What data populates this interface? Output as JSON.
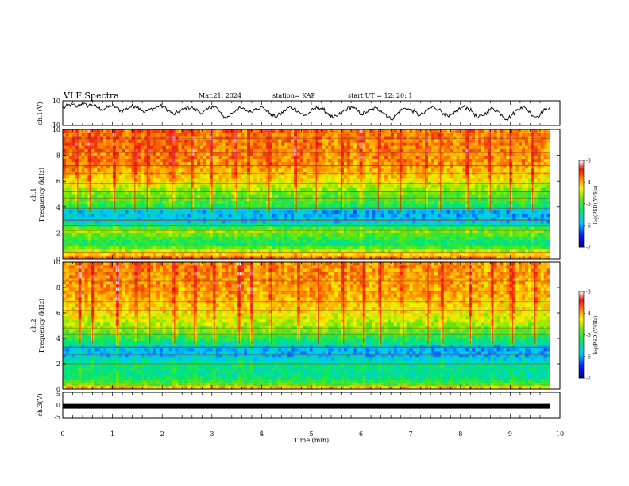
{
  "header": {
    "title": "VLF Spectra",
    "date": "Mar.21, 2024",
    "station": "station= KAP",
    "start": "start  UT  =   12: 20: 1"
  },
  "chart_data": [
    {
      "type": "line",
      "name": "ch.1 waveform",
      "ylabel": "ch.1(V)",
      "ylim": [
        -10,
        10
      ],
      "yticks": [
        "10",
        "-10"
      ],
      "xlim": [
        0,
        10
      ],
      "x_extent_min": 9.8,
      "approx_period_min": 0.6,
      "approx_amplitude_V": [
        -6,
        8
      ],
      "samples": [
        4,
        6,
        7,
        5,
        8,
        6,
        7,
        5,
        3,
        4,
        6,
        5,
        2,
        3,
        5,
        6,
        4,
        1,
        3,
        4,
        6,
        5,
        2,
        -1,
        1,
        3,
        5,
        4,
        2,
        0,
        3,
        6,
        4,
        -2,
        -4,
        0,
        3,
        4,
        2,
        1,
        4,
        5,
        3,
        0,
        -3,
        -1,
        2,
        5,
        4,
        1,
        -2,
        0,
        3,
        5,
        3,
        0,
        -4,
        -2,
        1,
        4,
        5,
        2,
        -1,
        1,
        3,
        4,
        2,
        -1,
        -5,
        -2,
        2,
        4,
        3,
        1,
        -2,
        0,
        4,
        5,
        3,
        0,
        -3,
        -1,
        3,
        5,
        4,
        1,
        -4,
        -2,
        1,
        4,
        2,
        -1,
        -5,
        -2,
        2,
        5,
        4,
        0,
        -3,
        -1,
        3,
        5
      ]
    },
    {
      "type": "heatmap",
      "name": "ch.1 spectrogram",
      "ylabel_line1": "ch.1",
      "ylabel_line2": "Frequency (kHz)",
      "ylim": [
        0,
        10
      ],
      "yticks": [
        "0",
        "2",
        "4",
        "6",
        "8",
        "10"
      ],
      "xlim": [
        0,
        10
      ],
      "x_extent_min": 9.8,
      "colorbar": {
        "label": "log(PSD)(V²/Hz)",
        "range": [
          -7,
          -3
        ],
        "ticks": [
          "-3",
          "-4",
          "-5",
          "-6",
          "-7"
        ]
      },
      "level_by_freq_kHz": [
        {
          "f": 0.0,
          "level": -3.6
        },
        {
          "f": 0.6,
          "level": -4.4
        },
        {
          "f": 1.2,
          "level": -5.3
        },
        {
          "f": 2.2,
          "level": -4.6
        },
        {
          "f": 2.8,
          "level": -5.7
        },
        {
          "f": 3.6,
          "level": -5.9
        },
        {
          "f": 4.2,
          "level": -5.0
        },
        {
          "f": 5.0,
          "level": -4.8
        },
        {
          "f": 6.0,
          "level": -4.2
        },
        {
          "f": 7.5,
          "level": -3.8
        },
        {
          "f": 10.0,
          "level": -3.7
        }
      ],
      "horizontal_lines_kHz": [
        0.5,
        2.2,
        2.6,
        3.0,
        3.9,
        4.7,
        5.2,
        5.8,
        6.6,
        7.2,
        8.2,
        9.3
      ],
      "bright_columns_min": [
        0.3,
        0.55,
        1.05,
        1.45,
        1.7,
        2.2,
        2.6,
        3.0,
        3.5,
        3.75,
        4.15,
        4.7,
        5.1,
        5.6,
        6.0,
        6.35,
        6.8,
        7.3,
        7.6,
        8.15,
        8.6,
        9.0,
        9.45
      ]
    },
    {
      "type": "heatmap",
      "name": "ch.2 spectrogram",
      "ylabel_line1": "ch.2",
      "ylabel_line2": "Frequency (kHz)",
      "ylim": [
        0,
        10
      ],
      "yticks": [
        "0",
        "2",
        "4",
        "6",
        "8",
        "10"
      ],
      "xlim": [
        0,
        10
      ],
      "x_extent_min": 9.8,
      "colorbar": {
        "label": "log(PSD)(V²/Hz)",
        "range": [
          -7,
          -3
        ],
        "ticks": [
          "-3",
          "-4",
          "-5",
          "-6",
          "-7"
        ]
      },
      "level_by_freq_kHz": [
        {
          "f": 0.0,
          "level": -3.7
        },
        {
          "f": 0.4,
          "level": -4.8
        },
        {
          "f": 1.0,
          "level": -5.4
        },
        {
          "f": 2.0,
          "level": -5.3
        },
        {
          "f": 2.6,
          "level": -5.8
        },
        {
          "f": 3.2,
          "level": -5.9
        },
        {
          "f": 3.8,
          "level": -5.2
        },
        {
          "f": 4.8,
          "level": -4.6
        },
        {
          "f": 6.0,
          "level": -4.2
        },
        {
          "f": 7.5,
          "level": -3.9
        },
        {
          "f": 10.0,
          "level": -3.8
        }
      ],
      "horizontal_lines_kHz": [
        0.4,
        2.0,
        2.7,
        3.3,
        4.3,
        4.8,
        5.6,
        6.2,
        6.9,
        7.7,
        8.5,
        9.2
      ],
      "bright_columns_min": [
        0.35,
        0.6,
        1.1,
        1.5,
        1.75,
        2.25,
        2.65,
        3.05,
        3.55,
        3.8,
        4.2,
        4.75,
        5.15,
        5.65,
        6.05,
        6.4,
        6.85,
        7.35,
        7.65,
        8.2,
        8.65,
        9.05,
        9.5
      ]
    },
    {
      "type": "line",
      "name": "ch.3",
      "ylabel": "ch.3(V)",
      "ylim": [
        -5,
        5
      ],
      "yticks": [
        "5",
        "0",
        "-5"
      ],
      "xlim": [
        0,
        10
      ],
      "x_extent_min": 9.8,
      "constant_value_V": -0.5
    },
    {
      "type": "axis",
      "xlabel": "Time (min)",
      "xticks": [
        "0",
        "1",
        "2",
        "3",
        "4",
        "5",
        "6",
        "7",
        "8",
        "9",
        "10"
      ]
    }
  ]
}
